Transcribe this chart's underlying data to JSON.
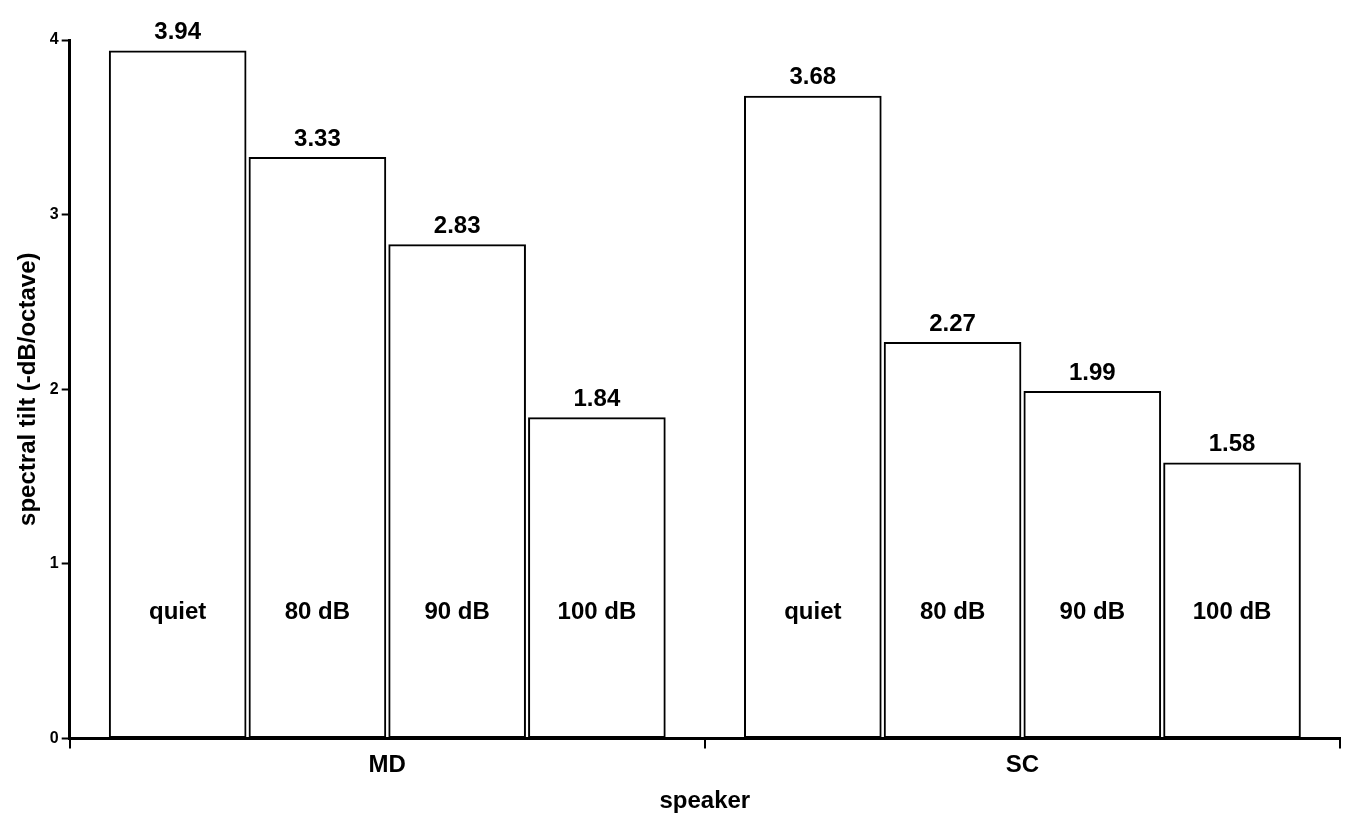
{
  "chart_data": {
    "type": "bar",
    "xlabel": "speaker",
    "ylabel": "spectral tilt (-dB/octave)",
    "categories": [
      "MD",
      "SC"
    ],
    "series": [
      {
        "name": "quiet",
        "color": "#000000",
        "values": [
          3.94,
          3.68
        ]
      },
      {
        "name": "80 dB",
        "color": "#000000",
        "values": [
          3.33,
          2.27
        ]
      },
      {
        "name": "90 dB",
        "color": "#000000",
        "values": [
          2.83,
          1.99
        ]
      },
      {
        "name": "100 dB",
        "color": "#000000",
        "values": [
          1.84,
          1.58
        ]
      }
    ],
    "ylim": [
      0,
      4
    ],
    "yticks": [
      0,
      1,
      2,
      3,
      4
    ],
    "grid": false,
    "legend": false,
    "data_labels": true
  }
}
